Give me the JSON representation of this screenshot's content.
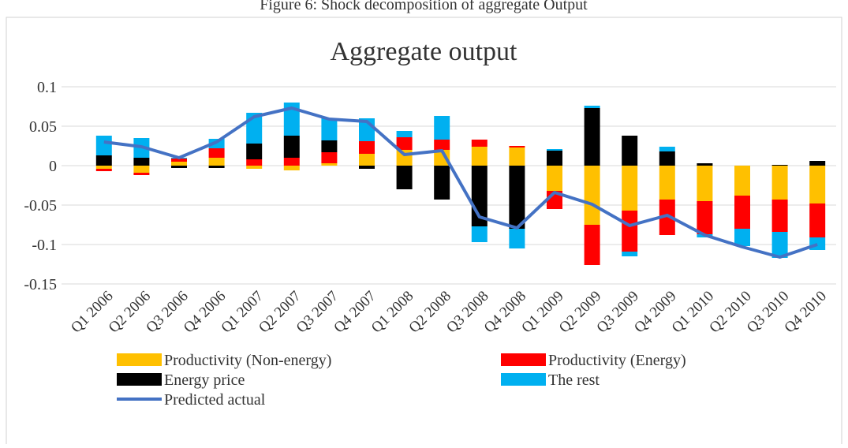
{
  "caption": "Figure 6: Shock decomposition of aggregate Output",
  "chart_data": {
    "type": "bar",
    "stacked": true,
    "title": "Aggregate output",
    "categories": [
      "Q1 2006",
      "Q2 2006",
      "Q3 2006",
      "Q4 2006",
      "Q1 2007",
      "Q2 2007",
      "Q3 2007",
      "Q4 2007",
      "Q1 2008",
      "Q2 2008",
      "Q3 2008",
      "Q4 2008",
      "Q1 2009",
      "Q2 2009",
      "Q3 2009",
      "Q4 2009",
      "Q1 2010",
      "Q2 2010",
      "Q3 2010",
      "Q4 2010"
    ],
    "series": [
      {
        "name": "Productivity  (Non-energy)",
        "type": "bar",
        "color": "#ffc000",
        "values": [
          -0.004,
          -0.009,
          0.005,
          0.01,
          -0.004,
          -0.006,
          0.003,
          0.015,
          0.02,
          0.02,
          0.024,
          0.023,
          -0.032,
          -0.075,
          -0.057,
          -0.043,
          -0.045,
          -0.038,
          -0.043,
          -0.048
        ]
      },
      {
        "name": "Productivity  (Energy)",
        "type": "bar",
        "color": "#ff0000",
        "values": [
          -0.003,
          -0.003,
          0.004,
          0.012,
          0.008,
          0.01,
          0.014,
          0.016,
          0.016,
          0.013,
          0.009,
          0.002,
          -0.023,
          -0.051,
          -0.052,
          -0.045,
          -0.042,
          -0.042,
          -0.041,
          -0.043
        ]
      },
      {
        "name": "Energy price",
        "type": "bar",
        "color": "#000000",
        "values": [
          0.013,
          0.01,
          -0.003,
          -0.003,
          0.02,
          0.028,
          0.015,
          -0.004,
          -0.03,
          -0.043,
          -0.077,
          -0.08,
          0.019,
          0.073,
          0.038,
          0.018,
          0.003,
          0,
          0.001,
          0.006
        ]
      },
      {
        "name": "The rest",
        "type": "bar",
        "color": "#00b0f0",
        "values": [
          0.025,
          0.025,
          0.001,
          0.012,
          0.039,
          0.042,
          0.028,
          0.029,
          0.008,
          0.03,
          -0.02,
          -0.025,
          0.002,
          0.003,
          -0.006,
          0.006,
          -0.004,
          -0.022,
          -0.033,
          -0.016
        ]
      },
      {
        "name": "Predicted actual",
        "type": "line",
        "color": "#4472c4",
        "values": [
          0.03,
          0.024,
          0.01,
          0.03,
          0.062,
          0.073,
          0.059,
          0.056,
          0.014,
          0.019,
          -0.065,
          -0.079,
          -0.034,
          -0.049,
          -0.076,
          -0.063,
          -0.088,
          -0.103,
          -0.116,
          -0.1
        ]
      }
    ],
    "ylim": [
      -0.15,
      0.1
    ],
    "yticks": [
      0.1,
      0.05,
      0,
      -0.05,
      -0.1,
      -0.15
    ],
    "grid": true,
    "legend": "bottom"
  }
}
